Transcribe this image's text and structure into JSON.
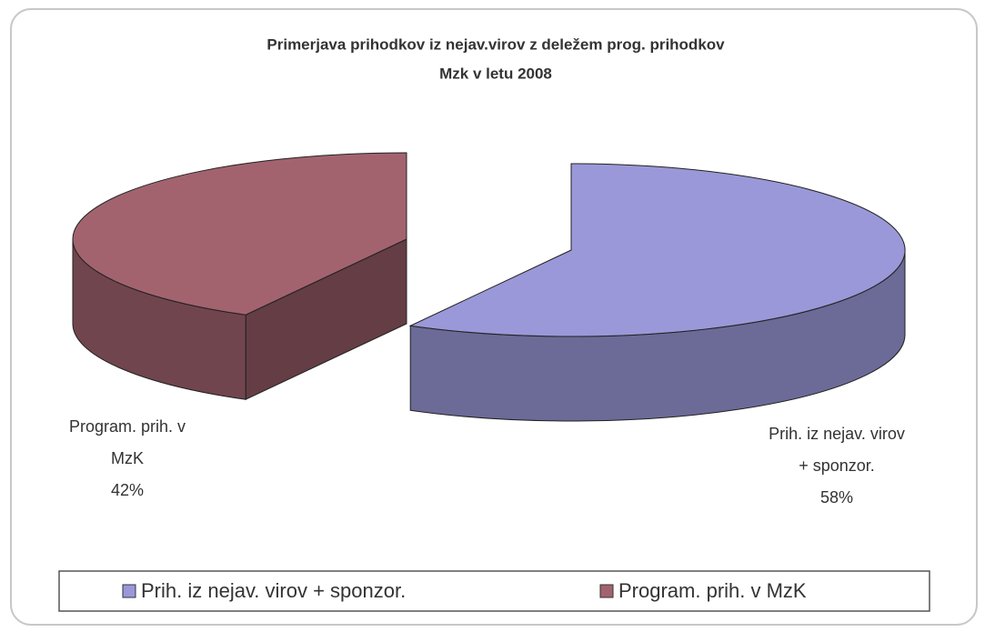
{
  "chart_data": {
    "type": "pie",
    "title": [
      "Primerjava prihodkov iz nejav.virov z deležem prog. prihodkov",
      "Mzk v letu 2008"
    ],
    "categories": [
      "Prih. iz nejav. virov + sponzor.",
      "Program. prih. v MzK"
    ],
    "values": [
      58,
      42
    ],
    "value_labels": [
      "58%",
      "42%"
    ],
    "colors": [
      "#9a98d8",
      "#a2636f"
    ],
    "legend": "bottom"
  }
}
